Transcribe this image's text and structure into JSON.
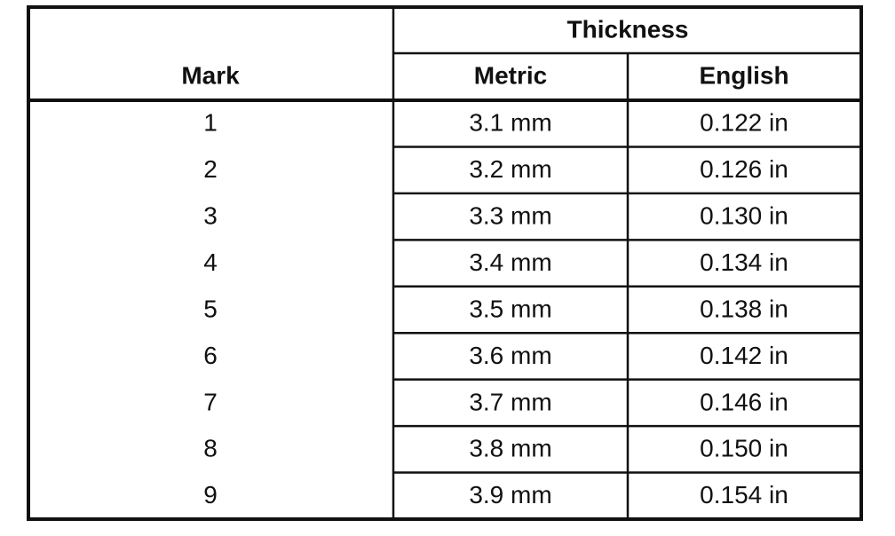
{
  "table": {
    "header": {
      "mark": "Mark",
      "group": "Thickness",
      "columns": [
        "Metric",
        "English"
      ]
    },
    "rows": [
      [
        "1",
        "3.1 mm",
        "0.122 in"
      ],
      [
        "2",
        "3.2 mm",
        "0.126 in"
      ],
      [
        "3",
        "3.3 mm",
        "0.130 in"
      ],
      [
        "4",
        "3.4 mm",
        "0.134 in"
      ],
      [
        "5",
        "3.5 mm",
        "0.138 in"
      ],
      [
        "6",
        "3.6 mm",
        "0.142 in"
      ],
      [
        "7",
        "3.7 mm",
        "0.146 in"
      ],
      [
        "8",
        "3.8 mm",
        "0.150 in"
      ],
      [
        "9",
        "3.9 mm",
        "0.154 in"
      ]
    ]
  }
}
